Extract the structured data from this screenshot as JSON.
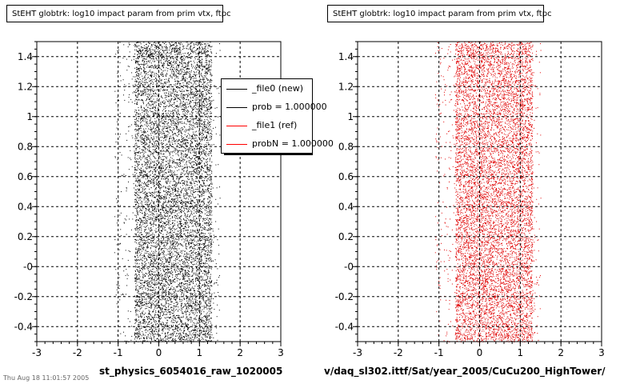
{
  "chart_data": [
    {
      "type": "scatter",
      "title": "StEHT globtrk: log10 impact param from prim vtx, ftpc",
      "xlabel": "st_physics_6054016_raw_1020005",
      "ylabel": "",
      "xlim": [
        -3,
        3
      ],
      "ylim": [
        -0.5,
        1.5
      ],
      "xticks": [
        "-3",
        "-2",
        "-1",
        "0",
        "1",
        "2",
        "3"
      ],
      "yticks": [
        "-0.4",
        "-0.2",
        "-0",
        "0.2",
        "0.4",
        "0.6",
        "0.8",
        "1",
        "1.2",
        "1.4"
      ],
      "grid": true,
      "point_color": "#000000",
      "x_distribution": {
        "core_min": -0.6,
        "core_max": 1.3,
        "tail_min": -1.1,
        "tail_max": 1.5
      },
      "legend": {
        "placement": "top-right",
        "entries": [
          {
            "label": "_file0 (new)",
            "color": "#000000"
          },
          {
            "label": "prob = 1.000000",
            "color": "#000000"
          },
          {
            "label": "_file1 (ref)",
            "color": "#ff0000"
          },
          {
            "label": "probN = 1.000000",
            "color": "#ff0000"
          }
        ]
      }
    },
    {
      "type": "scatter",
      "title": "StEHT globtrk: log10 impact param from prim vtx, ftpc",
      "xlabel": "v/daq_sl302.ittf/Sat/year_2005/CuCu200_HighTower/",
      "ylabel": "",
      "xlim": [
        -3,
        3
      ],
      "ylim": [
        -0.5,
        1.5
      ],
      "xticks": [
        "-3",
        "-2",
        "-1",
        "0",
        "1",
        "2",
        "3"
      ],
      "yticks": [
        "-0.4",
        "-0.2",
        "-0",
        "0.2",
        "0.4",
        "0.6",
        "0.8",
        "1",
        "1.2",
        "1.4"
      ],
      "grid": true,
      "point_color": "#e00000",
      "x_distribution": {
        "core_min": -0.6,
        "core_max": 1.3,
        "tail_min": -1.1,
        "tail_max": 1.5
      }
    }
  ],
  "footer": "Thu Aug 18 11:01:57 2005"
}
